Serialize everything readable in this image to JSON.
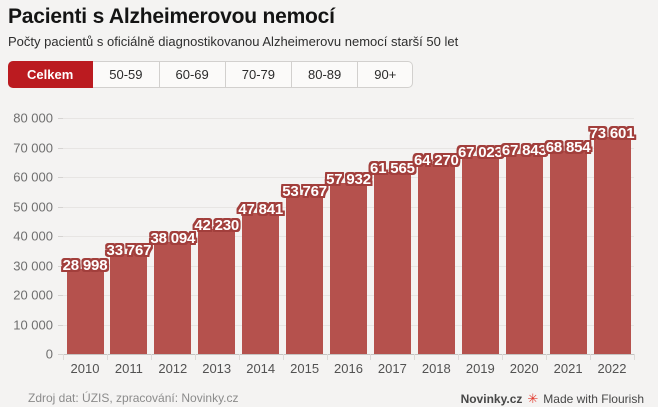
{
  "header": {
    "title": "Pacienti s Alzheimerovou nemocí",
    "subtitle": "Počty pacientů s oficiálně diagnostikovanou Alzheimerovu nemocí starší 50 let"
  },
  "tabs": {
    "selected": "Celkem",
    "items": [
      "Celkem",
      "50-59",
      "60-69",
      "70-79",
      "80-89",
      "90+"
    ]
  },
  "chart_data": {
    "type": "bar",
    "title": "Pacienti s Alzheimerovou nemocí",
    "categories": [
      "2010",
      "2011",
      "2012",
      "2013",
      "2014",
      "2015",
      "2016",
      "2017",
      "2018",
      "2019",
      "2020",
      "2021",
      "2022"
    ],
    "values": [
      28998,
      33767,
      38094,
      42230,
      47841,
      53767,
      57932,
      61565,
      64270,
      67023,
      67843,
      68854,
      73601
    ],
    "value_labels": [
      "28 998",
      "33 767",
      "38 094",
      "42 230",
      "47 841",
      "53 767",
      "57 932",
      "61 565",
      "64 270",
      "67 023",
      "67 843",
      "68 854",
      "73 601"
    ],
    "xlabel": "",
    "ylabel": "",
    "ylim": [
      0,
      80000
    ],
    "ytick_step": 10000,
    "ytick_labels": [
      "0",
      "10 000",
      "20 000",
      "30 000",
      "40 000",
      "50 000",
      "60 000",
      "70 000",
      "80 000"
    ],
    "grid": true,
    "legend": "none",
    "bar_color": "#b5514d",
    "label_text_color": "#ffffff",
    "label_halo_color": "#a23f3c"
  },
  "footer": {
    "source": "Zdroj dat: ÚZIS, zpracování: Novinky.cz",
    "brand": "Novinky.cz",
    "flourish_icon": "✳",
    "credit": "Made with Flourish"
  },
  "colors": {
    "background": "#f4f3f2",
    "accent_red": "#bb1b20",
    "bar": "#b5514d",
    "halo": "#a23f3c",
    "flourish": "#e23a2e"
  }
}
